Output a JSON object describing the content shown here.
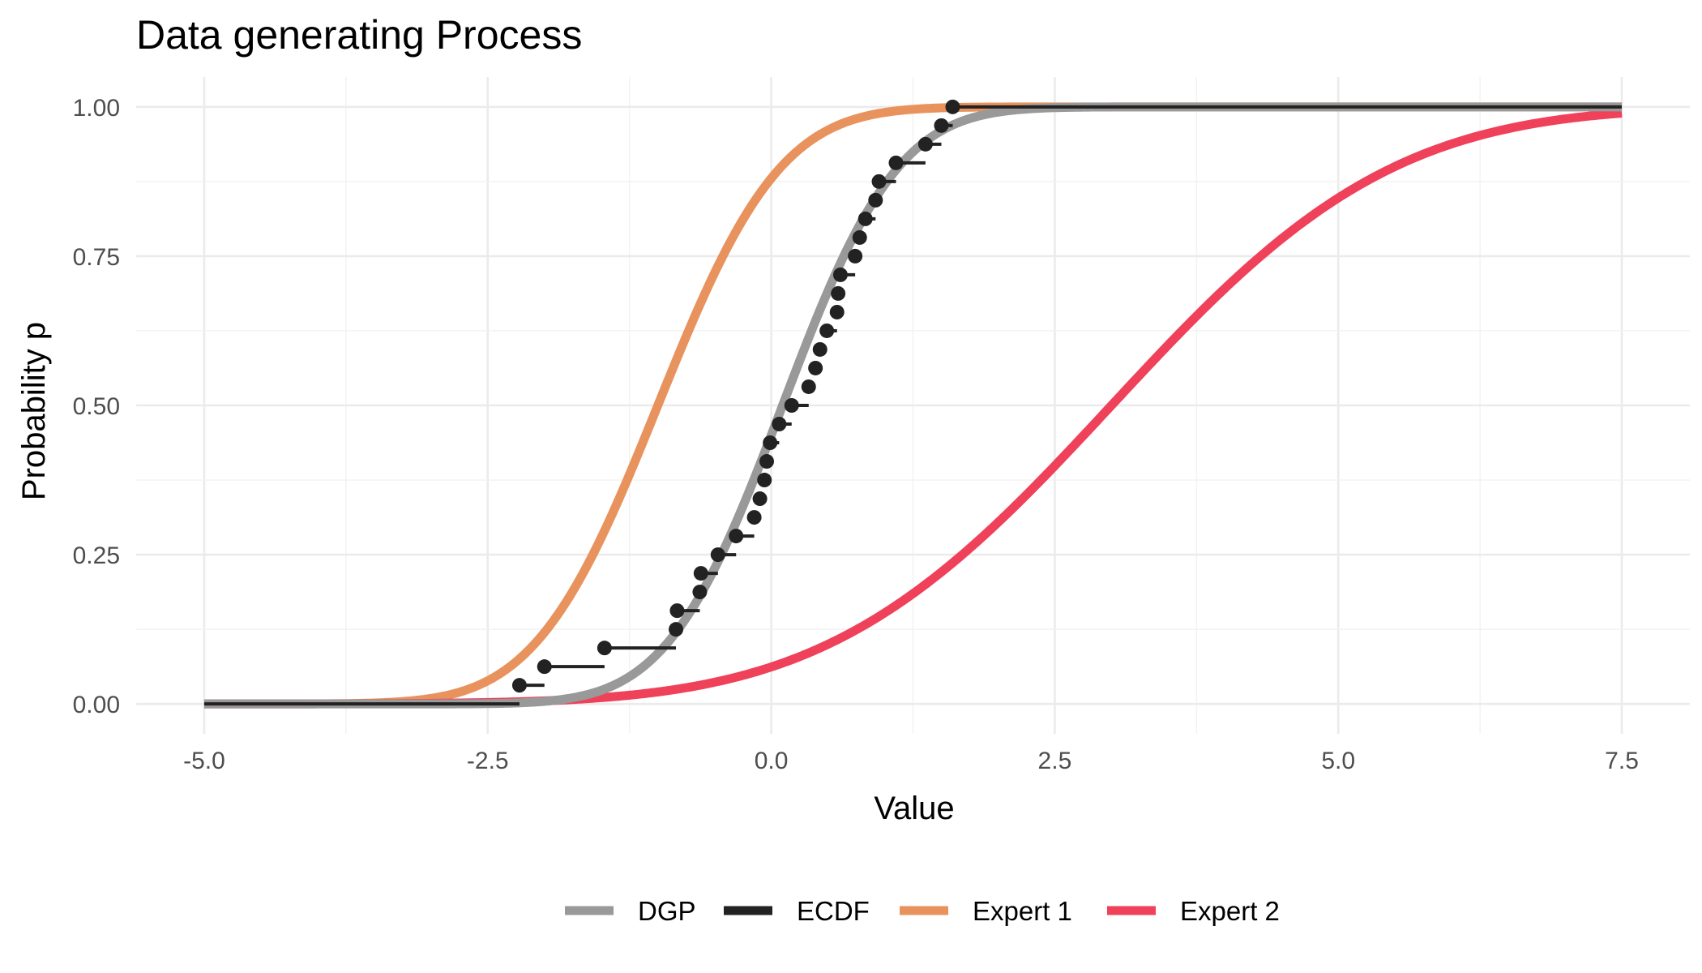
{
  "chart_data": {
    "type": "line",
    "title": "Data generating Process",
    "xlabel": "Value",
    "ylabel": "Probability p",
    "xlim": [
      -5.6,
      8.1
    ],
    "ylim": [
      -0.05,
      1.05
    ],
    "x_ticks": [
      -5.0,
      -2.5,
      0.0,
      2.5,
      5.0,
      7.5
    ],
    "x_tick_labels": [
      "-5.0",
      "-2.5",
      "0.0",
      "2.5",
      "5.0",
      "7.5"
    ],
    "y_ticks": [
      0.0,
      0.25,
      0.5,
      0.75,
      1.0
    ],
    "y_tick_labels": [
      "0.00",
      "0.25",
      "0.50",
      "0.75",
      "1.00"
    ],
    "grid": true,
    "legend_position": "bottom",
    "series": [
      {
        "name": "DGP",
        "color": "#999999",
        "curve": "normal-cdf",
        "mean": 0.1,
        "sd": 0.8,
        "x_range": [
          -5,
          7.5
        ]
      },
      {
        "name": "Expert 1",
        "color": "#E8935E",
        "curve": "normal-cdf",
        "mean": -1.0,
        "sd": 0.85,
        "x_range": [
          -5,
          7.5
        ]
      },
      {
        "name": "Expert 2",
        "color": "#F0415A",
        "curve": "normal-cdf",
        "mean": 3.0,
        "sd": 1.95,
        "x_range": [
          -5,
          7.5
        ]
      }
    ],
    "ecdf": {
      "name": "ECDF",
      "color": "#222222",
      "x_range": [
        -5,
        7.5
      ],
      "points": [
        [
          -2.22,
          0.03125
        ],
        [
          -2.0,
          0.0625
        ],
        [
          -1.47,
          0.09375
        ],
        [
          -0.84,
          0.125
        ],
        [
          -0.83,
          0.15625
        ],
        [
          -0.63,
          0.1875
        ],
        [
          -0.62,
          0.21875
        ],
        [
          -0.47,
          0.25
        ],
        [
          -0.31,
          0.28125
        ],
        [
          -0.15,
          0.3125
        ],
        [
          -0.1,
          0.34375
        ],
        [
          -0.06,
          0.375
        ],
        [
          -0.04,
          0.40625
        ],
        [
          -0.01,
          0.4375
        ],
        [
          0.07,
          0.46875
        ],
        [
          0.18,
          0.5
        ],
        [
          0.33,
          0.53125
        ],
        [
          0.39,
          0.5625
        ],
        [
          0.43,
          0.59375
        ],
        [
          0.49,
          0.625
        ],
        [
          0.58,
          0.65625
        ],
        [
          0.59,
          0.6875
        ],
        [
          0.61,
          0.71875
        ],
        [
          0.74,
          0.75
        ],
        [
          0.78,
          0.78125
        ],
        [
          0.83,
          0.8125
        ],
        [
          0.92,
          0.84375
        ],
        [
          0.95,
          0.875
        ],
        [
          1.1,
          0.90625
        ],
        [
          1.36,
          0.9375
        ],
        [
          1.5,
          0.96875
        ],
        [
          1.6,
          1.0
        ]
      ]
    }
  }
}
